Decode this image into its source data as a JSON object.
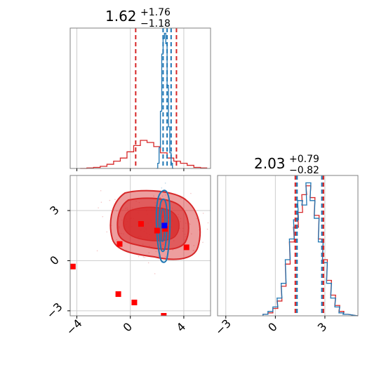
{
  "colors": {
    "red": "#d62728",
    "blue": "#1f77b4",
    "marker_red": "#ff0000",
    "marker_blue": "#0000ff",
    "grid": "#cccccc",
    "axis": "#808080"
  },
  "chart_data": [
    {
      "type": "histogram",
      "panel": "top-left",
      "title": {
        "value": "1.62",
        "upper": "+1.76",
        "lower": "−1.18"
      },
      "xlim": [
        -4.5,
        6.0
      ],
      "grid": true,
      "series": [
        {
          "color": "#d62728",
          "x": [
            -3.5,
            -3.0,
            -2.5,
            -2.0,
            -1.5,
            -1.0,
            -0.5,
            0.0,
            0.5,
            1.0,
            1.5,
            2.0,
            2.5,
            3.0,
            3.5,
            4.0,
            4.5,
            5.0,
            5.5
          ],
          "y": [
            0.0,
            0.005,
            0.01,
            0.02,
            0.04,
            0.07,
            0.1,
            0.16,
            0.22,
            0.27,
            0.25,
            0.21,
            0.15,
            0.1,
            0.07,
            0.05,
            0.03,
            0.01,
            0.005
          ]
        },
        {
          "color": "#1f77b4",
          "x": [
            2.0,
            2.1,
            2.2,
            2.3,
            2.4,
            2.5,
            2.6,
            2.7,
            2.8,
            2.9,
            3.0,
            3.1,
            3.2
          ],
          "y": [
            0.0,
            0.05,
            0.2,
            0.55,
            1.1,
            1.25,
            1.3,
            1.2,
            0.8,
            0.4,
            0.15,
            0.05,
            0.0
          ]
        }
      ],
      "vlines": [
        {
          "x": 0.4,
          "color": "#d62728"
        },
        {
          "x": 3.45,
          "color": "#d62728"
        },
        {
          "x": 2.45,
          "color": "#1f77b4"
        },
        {
          "x": 2.75,
          "color": "#1f77b4"
        },
        {
          "x": 3.05,
          "color": "#1f77b4"
        }
      ]
    },
    {
      "type": "contour",
      "panel": "bottom-left",
      "xlim": [
        -4.5,
        6.0
      ],
      "ylim": [
        -3.3,
        5.1
      ],
      "xticks": [
        -4,
        0,
        4
      ],
      "yticks": [
        -3,
        0,
        3
      ],
      "grid": true,
      "red_markers": [
        [
          -4.3,
          -0.35
        ],
        [
          -0.8,
          1.0
        ],
        [
          0.8,
          2.2
        ],
        [
          2.0,
          1.8
        ],
        [
          2.6,
          1.9
        ],
        [
          4.2,
          0.8
        ],
        [
          -0.9,
          -2.0
        ],
        [
          0.3,
          -2.5
        ],
        [
          2.5,
          -3.3
        ]
      ],
      "blue_markers": [
        [
          2.55,
          2.1
        ]
      ]
    },
    {
      "type": "histogram",
      "panel": "bottom-right",
      "title": {
        "value": "2.03",
        "upper": "+0.79",
        "lower": "−0.82"
      },
      "xlim": [
        -3.5,
        5.0
      ],
      "xticks": [
        -3,
        0,
        3
      ],
      "grid": true,
      "series": [
        {
          "color": "#d62728",
          "x": [
            -0.6,
            -0.3,
            0.0,
            0.25,
            0.5,
            0.75,
            1.0,
            1.25,
            1.5,
            1.75,
            2.0,
            2.25,
            2.5,
            2.75,
            3.0,
            3.25,
            3.5,
            3.75,
            4.0,
            4.25
          ],
          "y": [
            0.01,
            0.02,
            0.05,
            0.1,
            0.2,
            0.35,
            0.5,
            0.6,
            0.7,
            0.82,
            0.88,
            0.8,
            0.68,
            0.52,
            0.38,
            0.24,
            0.14,
            0.07,
            0.03,
            0.01
          ]
        },
        {
          "color": "#1f77b4",
          "x": [
            -0.6,
            -0.3,
            0.0,
            0.25,
            0.5,
            0.75,
            1.0,
            1.25,
            1.5,
            1.75,
            2.0,
            2.25,
            2.5,
            2.75,
            3.0,
            3.25,
            3.5,
            3.75,
            4.0,
            4.25
          ],
          "y": [
            0.01,
            0.03,
            0.06,
            0.12,
            0.22,
            0.38,
            0.52,
            0.65,
            0.78,
            0.75,
            0.9,
            0.78,
            0.66,
            0.5,
            0.36,
            0.22,
            0.12,
            0.06,
            0.02,
            0.01
          ]
        }
      ],
      "vlines": [
        {
          "x": 1.21,
          "color": "#d62728"
        },
        {
          "x": 1.31,
          "color": "#1f77b4"
        },
        {
          "x": 2.82,
          "color": "#1f77b4"
        },
        {
          "x": 2.91,
          "color": "#d62728"
        }
      ]
    }
  ]
}
